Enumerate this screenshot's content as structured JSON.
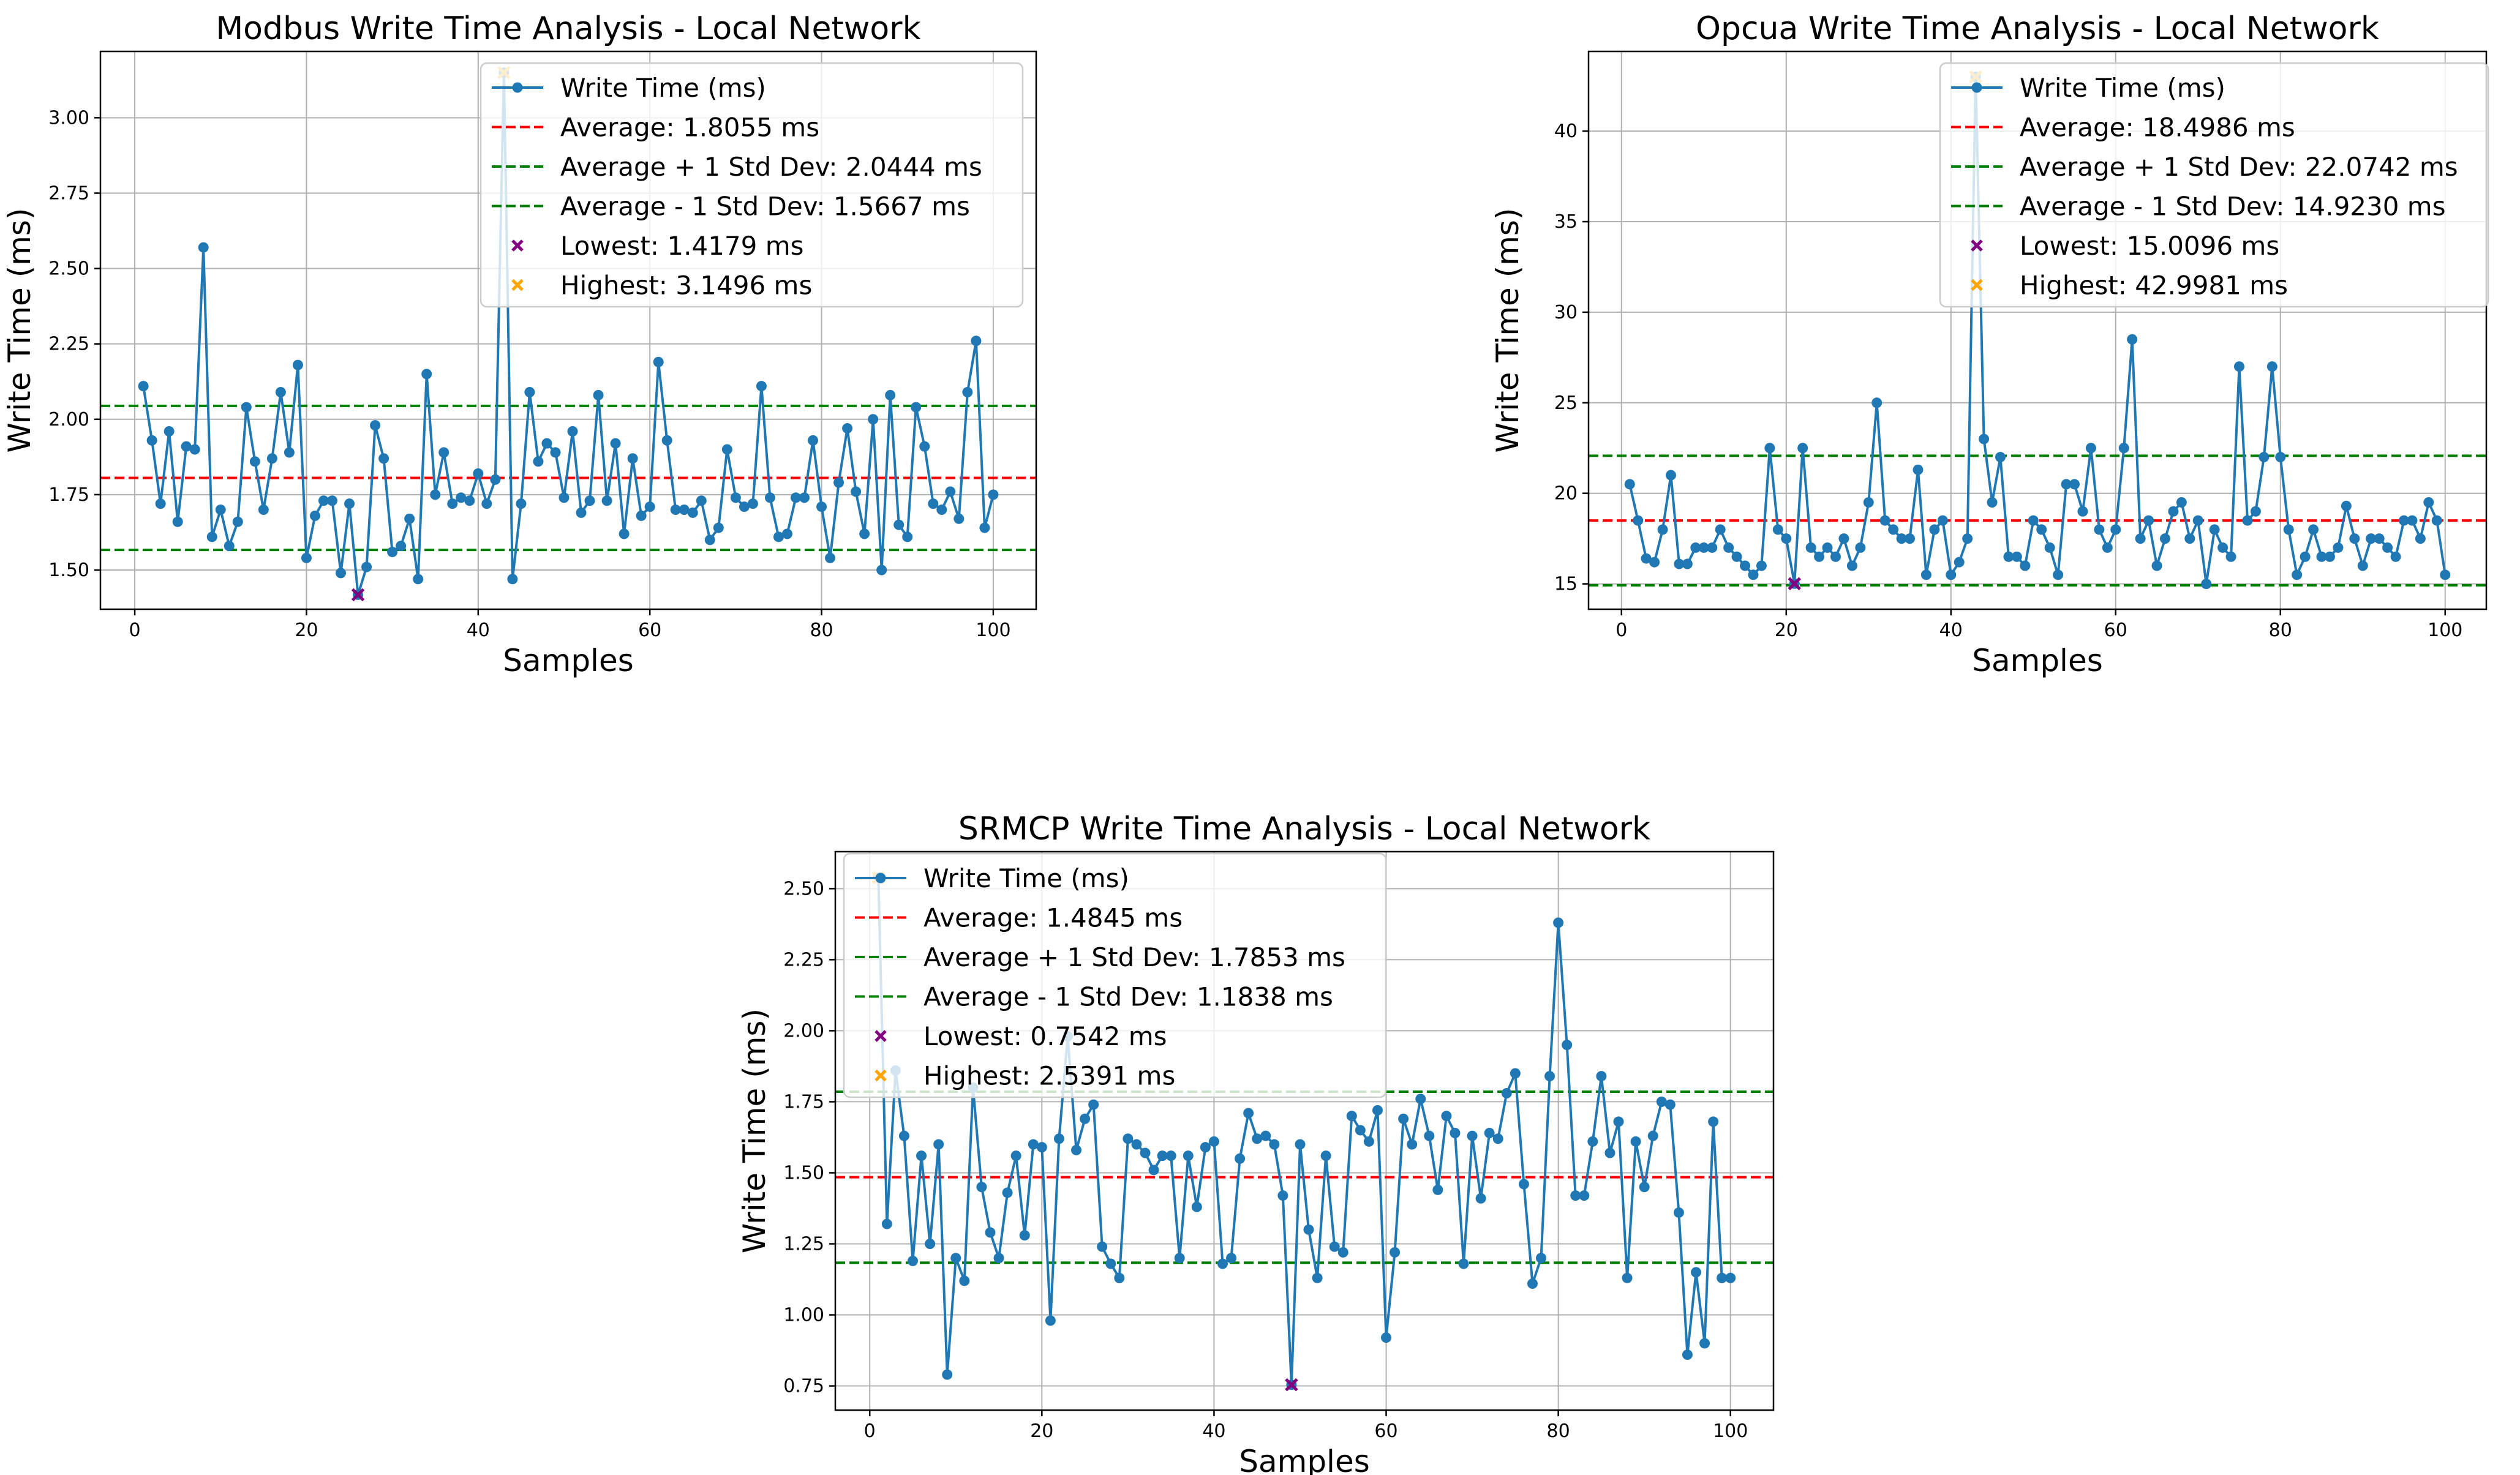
{
  "figure": {
    "background": "#ffffff"
  },
  "colors": {
    "series": "#1f77b4",
    "average": "#ff0000",
    "stddev": "#008000",
    "lowest": "#800080",
    "highest": "#ffa500",
    "grid": "#b0b0b0"
  },
  "chart_data": [
    {
      "type": "line",
      "title": "Modbus Write Time Analysis - Local Network",
      "xlabel": "Samples",
      "ylabel": "Write Time (ms)",
      "xlim": [
        -4,
        105
      ],
      "ylim": [
        1.37,
        3.22
      ],
      "xticks": [
        0,
        20,
        40,
        60,
        80,
        100
      ],
      "yticks": [
        1.5,
        1.75,
        2.0,
        2.25,
        2.5,
        2.75,
        3.0
      ],
      "ytick_labels": [
        "1.50",
        "1.75",
        "2.00",
        "2.25",
        "2.50",
        "2.75",
        "3.00"
      ],
      "grid": true,
      "legend_position": "upper-right",
      "x": [
        1,
        2,
        3,
        4,
        5,
        6,
        7,
        8,
        9,
        10,
        11,
        12,
        13,
        14,
        15,
        16,
        17,
        18,
        19,
        20,
        21,
        22,
        23,
        24,
        25,
        26,
        27,
        28,
        29,
        30,
        31,
        32,
        33,
        34,
        35,
        36,
        37,
        38,
        39,
        40,
        41,
        42,
        43,
        44,
        45,
        46,
        47,
        48,
        49,
        50,
        51,
        52,
        53,
        54,
        55,
        56,
        57,
        58,
        59,
        60,
        61,
        62,
        63,
        64,
        65,
        66,
        67,
        68,
        69,
        70,
        71,
        72,
        73,
        74,
        75,
        76,
        77,
        78,
        79,
        80,
        81,
        82,
        83,
        84,
        85,
        86,
        87,
        88,
        89,
        90,
        91,
        92,
        93,
        94,
        95,
        96,
        97,
        98,
        99,
        100
      ],
      "series": [
        {
          "name": "Write Time (ms)",
          "values": [
            2.11,
            1.93,
            1.72,
            1.96,
            1.66,
            1.91,
            1.9,
            2.57,
            1.61,
            1.7,
            1.58,
            1.66,
            2.04,
            1.86,
            1.7,
            1.87,
            2.09,
            1.89,
            2.18,
            1.54,
            1.68,
            1.73,
            1.73,
            1.49,
            1.72,
            1.4179,
            1.51,
            1.98,
            1.87,
            1.56,
            1.58,
            1.67,
            1.47,
            2.15,
            1.75,
            1.89,
            1.72,
            1.74,
            1.73,
            1.82,
            1.72,
            1.8,
            3.1496,
            1.47,
            1.72,
            2.09,
            1.86,
            1.92,
            1.89,
            1.74,
            1.96,
            1.69,
            1.73,
            2.08,
            1.73,
            1.92,
            1.62,
            1.87,
            1.68,
            1.71,
            2.19,
            1.93,
            1.7,
            1.7,
            1.69,
            1.73,
            1.6,
            1.64,
            1.9,
            1.74,
            1.71,
            1.72,
            2.11,
            1.74,
            1.61,
            1.62,
            1.74,
            1.74,
            1.93,
            1.71,
            1.54,
            1.79,
            1.97,
            1.76,
            1.62,
            2.0,
            1.5,
            2.08,
            1.65,
            1.61,
            2.04,
            1.91,
            1.72,
            1.7,
            1.76,
            1.67,
            2.09,
            2.26,
            1.64,
            1.75
          ]
        }
      ],
      "average": 1.8055,
      "upper": 2.0444,
      "lower": 1.5667,
      "lowest": {
        "x": 26,
        "y": 1.4179
      },
      "highest": {
        "x": 43,
        "y": 3.1496
      },
      "legend": [
        "Write Time (ms)",
        "Average: 1.8055 ms",
        "Average + 1 Std Dev: 2.0444 ms",
        "Average - 1 Std Dev: 1.5667 ms",
        "Lowest: 1.4179 ms",
        "Highest: 3.1496 ms"
      ]
    },
    {
      "type": "line",
      "title": "Opcua Write Time Analysis - Local Network",
      "xlabel": "Samples",
      "ylabel": "Write Time (ms)",
      "xlim": [
        -4,
        105
      ],
      "ylim": [
        13.6,
        44.4
      ],
      "xticks": [
        0,
        20,
        40,
        60,
        80,
        100
      ],
      "yticks": [
        15,
        20,
        25,
        30,
        35,
        40
      ],
      "ytick_labels": [
        "15",
        "20",
        "25",
        "30",
        "35",
        "40"
      ],
      "grid": true,
      "legend_position": "upper-right",
      "x": [
        1,
        2,
        3,
        4,
        5,
        6,
        7,
        8,
        9,
        10,
        11,
        12,
        13,
        14,
        15,
        16,
        17,
        18,
        19,
        20,
        21,
        22,
        23,
        24,
        25,
        26,
        27,
        28,
        29,
        30,
        31,
        32,
        33,
        34,
        35,
        36,
        37,
        38,
        39,
        40,
        41,
        42,
        43,
        44,
        45,
        46,
        47,
        48,
        49,
        50,
        51,
        52,
        53,
        54,
        55,
        56,
        57,
        58,
        59,
        60,
        61,
        62,
        63,
        64,
        65,
        66,
        67,
        68,
        69,
        70,
        71,
        72,
        73,
        74,
        75,
        76,
        77,
        78,
        79,
        80,
        81,
        82,
        83,
        84,
        85,
        86,
        87,
        88,
        89,
        90,
        91,
        92,
        93,
        94,
        95,
        96,
        97,
        98,
        99,
        100
      ],
      "series": [
        {
          "name": "Write Time (ms)",
          "values": [
            20.5,
            18.5,
            16.4,
            16.2,
            18.0,
            21.0,
            16.1,
            16.1,
            17.0,
            17.0,
            17.0,
            18.0,
            17.0,
            16.5,
            16.0,
            15.5,
            16.0,
            22.5,
            18.0,
            17.5,
            15.0096,
            22.5,
            17.0,
            16.5,
            17.0,
            16.5,
            17.5,
            16.0,
            17.0,
            19.5,
            25.0,
            18.5,
            18.0,
            17.5,
            17.5,
            21.3,
            15.5,
            18.0,
            18.5,
            15.5,
            16.2,
            17.5,
            42.9981,
            23.0,
            19.5,
            22.0,
            16.5,
            16.5,
            16.0,
            18.5,
            18.0,
            17.0,
            15.5,
            20.5,
            20.5,
            19.0,
            22.5,
            18.0,
            17.0,
            18.0,
            22.5,
            28.5,
            17.5,
            18.5,
            16.0,
            17.5,
            19.0,
            19.5,
            17.5,
            18.5,
            15.0,
            18.0,
            17.0,
            16.5,
            27.0,
            18.5,
            19.0,
            22.0,
            27.0,
            22.0,
            18.0,
            15.5,
            16.5,
            18.0,
            16.5,
            16.5,
            17.0,
            19.3,
            17.5,
            16.0,
            17.5,
            17.5,
            17.0,
            16.5,
            18.5,
            18.5,
            17.5,
            19.5,
            18.5,
            15.5
          ]
        }
      ],
      "average": 18.4986,
      "upper": 22.0742,
      "lower": 14.923,
      "lowest": {
        "x": 21,
        "y": 15.0096
      },
      "highest": {
        "x": 43,
        "y": 42.9981
      },
      "legend": [
        "Write Time (ms)",
        "Average: 18.4986 ms",
        "Average + 1 Std Dev: 22.0742 ms",
        "Average - 1 Std Dev: 14.9230 ms",
        "Lowest: 15.0096 ms",
        "Highest: 42.9981 ms"
      ]
    },
    {
      "type": "line",
      "title": "SRMCP Write Time Analysis - Local Network",
      "xlabel": "Samples",
      "ylabel": "Write Time (ms)",
      "xlim": [
        -4,
        105
      ],
      "ylim": [
        0.665,
        2.63
      ],
      "xticks": [
        0,
        20,
        40,
        60,
        80,
        100
      ],
      "yticks": [
        0.75,
        1.0,
        1.25,
        1.5,
        1.75,
        2.0,
        2.25,
        2.5
      ],
      "ytick_labels": [
        "0.75",
        "1.00",
        "1.25",
        "1.50",
        "1.75",
        "2.00",
        "2.25",
        "2.50"
      ],
      "grid": true,
      "legend_position": "upper-left",
      "x": [
        1,
        2,
        3,
        4,
        5,
        6,
        7,
        8,
        9,
        10,
        11,
        12,
        13,
        14,
        15,
        16,
        17,
        18,
        19,
        20,
        21,
        22,
        23,
        24,
        25,
        26,
        27,
        28,
        29,
        30,
        31,
        32,
        33,
        34,
        35,
        36,
        37,
        38,
        39,
        40,
        41,
        42,
        43,
        44,
        45,
        46,
        47,
        48,
        49,
        50,
        51,
        52,
        53,
        54,
        55,
        56,
        57,
        58,
        59,
        60,
        61,
        62,
        63,
        64,
        65,
        66,
        67,
        68,
        69,
        70,
        71,
        72,
        73,
        74,
        75,
        76,
        77,
        78,
        79,
        80,
        81,
        82,
        83,
        84,
        85,
        86,
        87,
        88,
        89,
        90,
        91,
        92,
        93,
        94,
        95,
        96,
        97,
        98,
        99,
        100
      ],
      "series": [
        {
          "name": "Write Time (ms)",
          "values": [
            2.5391,
            1.32,
            1.86,
            1.63,
            1.19,
            1.56,
            1.25,
            1.6,
            0.79,
            1.2,
            1.12,
            1.8,
            1.45,
            1.29,
            1.2,
            1.43,
            1.56,
            1.28,
            1.6,
            1.59,
            0.98,
            1.62,
            1.98,
            1.58,
            1.69,
            1.74,
            1.24,
            1.18,
            1.13,
            1.62,
            1.6,
            1.57,
            1.51,
            1.56,
            1.56,
            1.2,
            1.56,
            1.38,
            1.59,
            1.61,
            1.18,
            1.2,
            1.55,
            1.71,
            1.62,
            1.63,
            1.6,
            1.42,
            0.7542,
            1.6,
            1.3,
            1.13,
            1.56,
            1.24,
            1.22,
            1.7,
            1.65,
            1.61,
            1.72,
            0.92,
            1.22,
            1.69,
            1.6,
            1.76,
            1.63,
            1.44,
            1.7,
            1.64,
            1.18,
            1.63,
            1.41,
            1.64,
            1.62,
            1.78,
            1.85,
            1.46,
            1.11,
            1.2,
            1.84,
            2.38,
            1.95,
            1.42,
            1.42,
            1.61,
            1.84,
            1.57,
            1.68,
            1.13,
            1.61,
            1.45,
            1.63,
            1.75,
            1.74,
            1.36,
            0.86,
            1.15,
            0.9,
            1.68,
            1.13,
            1.13
          ]
        }
      ],
      "average": 1.4845,
      "upper": 1.7853,
      "lower": 1.1838,
      "lowest": {
        "x": 49,
        "y": 0.7542
      },
      "highest": {
        "x": 1,
        "y": 2.5391
      },
      "legend": [
        "Write Time (ms)",
        "Average: 1.4845 ms",
        "Average + 1 Std Dev: 1.7853 ms",
        "Average - 1 Std Dev: 1.1838 ms",
        "Lowest: 0.7542 ms",
        "Highest: 2.5391 ms"
      ]
    }
  ]
}
